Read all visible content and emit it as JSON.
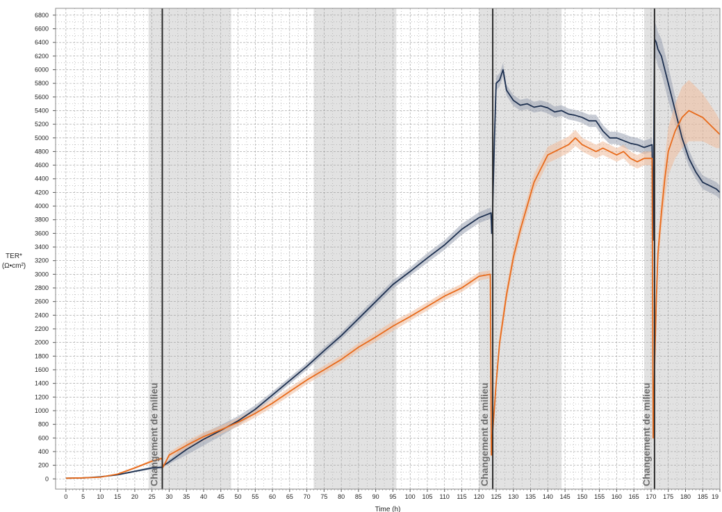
{
  "chart_data": {
    "type": "line",
    "ylabel_line1": "TER*",
    "ylabel_line2": "(Ω•cm²)",
    "xlabel": "Time (h)",
    "xlim": [
      -3,
      190
    ],
    "ylim": [
      -150,
      6900
    ],
    "x_ticks": [
      "0",
      "5",
      "10",
      "15",
      "20",
      "25",
      "30",
      "35",
      "40",
      "45",
      "50",
      "55",
      "60",
      "65",
      "70",
      "75",
      "80",
      "85",
      "90",
      "95",
      "100",
      "105",
      "110",
      "115",
      "120",
      "125",
      "130",
      "135",
      "140",
      "145",
      "150",
      "155",
      "160",
      "165",
      "170",
      "175",
      "180",
      "185",
      "19"
    ],
    "y_ticks": [
      "0",
      "200",
      "400",
      "600",
      "800",
      "1000",
      "1200",
      "1400",
      "1600",
      "1800",
      "2000",
      "2200",
      "2400",
      "2600",
      "2800",
      "3000",
      "3200",
      "3400",
      "3600",
      "3800",
      "4000",
      "4200",
      "4400",
      "4600",
      "4800",
      "5000",
      "5200",
      "5400",
      "5600",
      "5800",
      "6000",
      "6200",
      "6400",
      "6600",
      "6800"
    ],
    "shaded_bands": [
      [
        24,
        48
      ],
      [
        72,
        96
      ],
      [
        120,
        144
      ],
      [
        168,
        192
      ]
    ],
    "vlines": [
      28,
      124,
      171
    ],
    "annotations": [
      "Changement de milieu",
      "Changement de milieu",
      "Changement de milieu"
    ],
    "series": [
      {
        "color": "#1c2f4f",
        "band_color": "#9aa3b3",
        "x": [
          0,
          5,
          10,
          15,
          20,
          25,
          27.9,
          28.2,
          30,
          35,
          40,
          45,
          50,
          55,
          60,
          65,
          70,
          75,
          80,
          85,
          90,
          95,
          100,
          105,
          110,
          115,
          120,
          123.5,
          123.7,
          124,
          124.5,
          125,
          126,
          127,
          128,
          130,
          132,
          134,
          136,
          138,
          140,
          142,
          144,
          146,
          148,
          150,
          152,
          154,
          156,
          158,
          160,
          162,
          164,
          166,
          168,
          170.3,
          170.6,
          171,
          171.5,
          172,
          173,
          175,
          177,
          179,
          181,
          183,
          185,
          187,
          189,
          190
        ],
        "y": [
          10,
          15,
          30,
          60,
          110,
          160,
          170,
          190,
          250,
          430,
          580,
          710,
          850,
          1020,
          1230,
          1440,
          1650,
          1880,
          2100,
          2350,
          2600,
          2850,
          3040,
          3240,
          3430,
          3660,
          3830,
          3900,
          3600,
          4000,
          5000,
          5800,
          5850,
          6000,
          5700,
          5550,
          5480,
          5500,
          5450,
          5470,
          5440,
          5380,
          5400,
          5350,
          5330,
          5300,
          5250,
          5250,
          5100,
          5000,
          5000,
          4960,
          4920,
          4900,
          4860,
          4900,
          3500,
          6450,
          6400,
          6300,
          6200,
          5800,
          5400,
          5000,
          4700,
          4500,
          4350,
          4300,
          4250,
          4200
        ],
        "band": [
          0,
          0,
          5,
          10,
          15,
          20,
          20,
          20,
          30,
          80,
          90,
          80,
          70,
          60,
          50,
          50,
          50,
          50,
          50,
          60,
          60,
          60,
          60,
          70,
          70,
          80,
          80,
          80,
          80,
          100,
          100,
          100,
          100,
          100,
          80,
          80,
          80,
          80,
          80,
          80,
          80,
          80,
          80,
          80,
          80,
          80,
          90,
          90,
          90,
          90,
          90,
          100,
          100,
          100,
          100,
          100,
          200,
          250,
          250,
          250,
          250,
          250,
          200,
          150,
          120,
          100,
          100,
          100,
          100,
          100
        ]
      },
      {
        "color": "#e86a1a",
        "band_color": "#f1bc9a",
        "x": [
          0,
          5,
          10,
          15,
          20,
          25,
          27.9,
          28.2,
          30,
          35,
          40,
          45,
          50,
          55,
          60,
          65,
          70,
          75,
          80,
          85,
          90,
          95,
          100,
          105,
          110,
          115,
          120,
          123.3,
          123.6,
          124,
          125,
          126,
          128,
          130,
          132,
          134,
          136,
          138,
          140,
          142,
          144,
          146,
          148,
          150,
          152,
          154,
          156,
          158,
          160,
          162,
          164,
          166,
          168,
          170.3,
          170.6,
          171,
          171.5,
          172,
          173,
          174,
          175,
          177,
          179,
          181,
          183,
          185,
          187,
          189,
          190
        ],
        "y": [
          10,
          15,
          25,
          70,
          160,
          260,
          300,
          170,
          350,
          490,
          620,
          720,
          830,
          960,
          1110,
          1280,
          1450,
          1600,
          1750,
          1930,
          2080,
          2240,
          2380,
          2530,
          2680,
          2800,
          2970,
          3000,
          350,
          700,
          1400,
          2000,
          2700,
          3250,
          3650,
          4000,
          4350,
          4550,
          4750,
          4800,
          4850,
          4900,
          5000,
          4900,
          4850,
          4800,
          4850,
          4800,
          4750,
          4800,
          4700,
          4650,
          4700,
          4700,
          600,
          1600,
          2600,
          3300,
          3900,
          4400,
          4800,
          5100,
          5300,
          5400,
          5350,
          5300,
          5200,
          5100,
          5050
        ],
        "band": [
          0,
          0,
          5,
          10,
          15,
          20,
          20,
          20,
          40,
          60,
          60,
          60,
          60,
          60,
          60,
          60,
          60,
          60,
          60,
          60,
          70,
          70,
          60,
          60,
          60,
          60,
          60,
          60,
          60,
          80,
          100,
          120,
          120,
          120,
          120,
          120,
          120,
          120,
          120,
          120,
          120,
          120,
          120,
          100,
          100,
          100,
          100,
          100,
          100,
          100,
          100,
          100,
          100,
          100,
          100,
          100,
          150,
          200,
          250,
          300,
          350,
          400,
          450,
          450,
          400,
          350,
          300,
          250,
          200
        ]
      }
    ]
  }
}
